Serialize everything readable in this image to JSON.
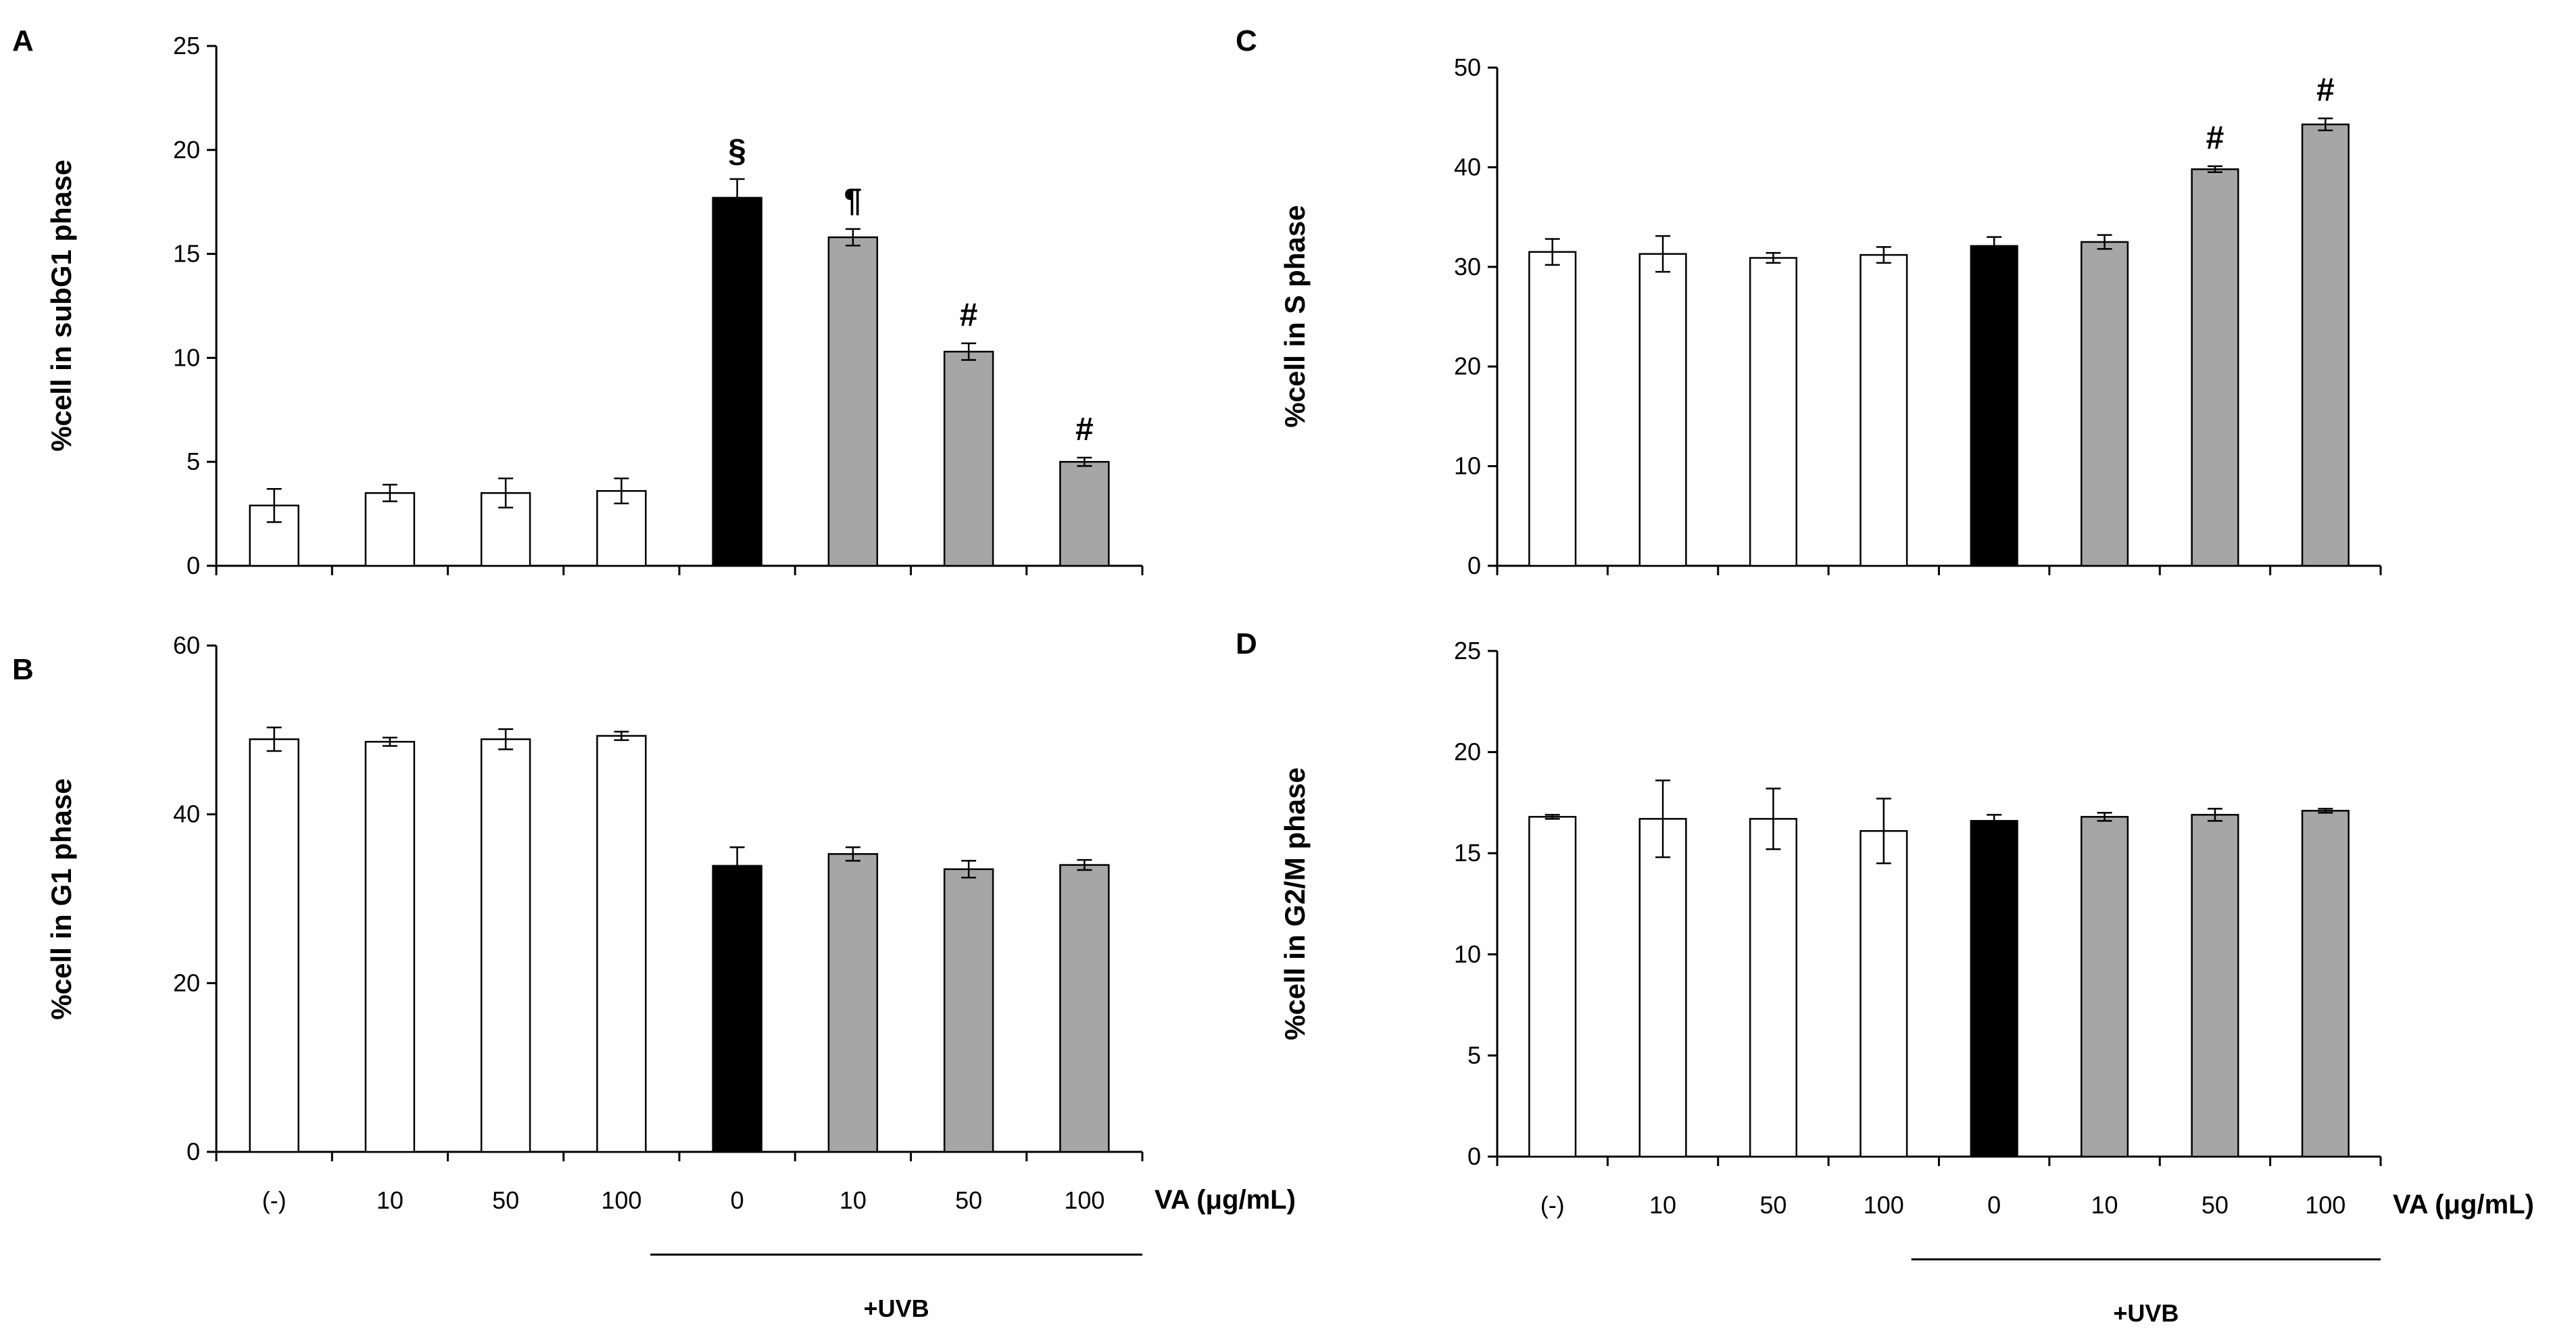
{
  "colors": {
    "control": "#ffffff",
    "uvb": "#000000",
    "uvb_va": "#a6a6a6",
    "stroke": "#000000"
  },
  "x_axis": {
    "categories": [
      "(-)",
      "10",
      "50",
      "100",
      "0",
      "10",
      "50",
      "100"
    ],
    "unit_label": "VA (μg/mL)",
    "group_label": "+UVB"
  },
  "chart_data": [
    {
      "panel": "A",
      "type": "bar",
      "ylabel": "%cell  in subG1 phase",
      "ylim": [
        0,
        25
      ],
      "yticks": [
        0,
        5,
        10,
        15,
        20,
        25
      ],
      "categories": [
        "(-)",
        "10",
        "50",
        "100",
        "0",
        "10",
        "50",
        "100"
      ],
      "values": [
        2.9,
        3.5,
        3.5,
        3.6,
        17.7,
        15.8,
        10.3,
        5.0
      ],
      "errors": [
        0.8,
        0.4,
        0.7,
        0.6,
        0.9,
        0.4,
        0.4,
        0.2
      ],
      "annotations": [
        "",
        "",
        "",
        "",
        "§",
        "¶",
        "#",
        "#"
      ]
    },
    {
      "panel": "B",
      "type": "bar",
      "ylabel": "%cell  in G1 phase",
      "ylim": [
        0,
        60
      ],
      "yticks": [
        0,
        20,
        40,
        60
      ],
      "categories": [
        "(-)",
        "10",
        "50",
        "100",
        "0",
        "10",
        "50",
        "100"
      ],
      "values": [
        48.9,
        48.6,
        48.9,
        49.3,
        33.9,
        35.3,
        33.5,
        34.0
      ],
      "errors": [
        1.4,
        0.5,
        1.2,
        0.5,
        2.2,
        0.8,
        1.0,
        0.6
      ],
      "annotations": [
        "",
        "",
        "",
        "",
        "",
        "",
        "",
        ""
      ]
    },
    {
      "panel": "C",
      "type": "bar",
      "ylabel": "%cell  in S phase",
      "ylim": [
        0,
        50
      ],
      "yticks": [
        0,
        10,
        20,
        30,
        40,
        50
      ],
      "categories": [
        "(-)",
        "10",
        "50",
        "100",
        "0",
        "10",
        "50",
        "100"
      ],
      "values": [
        31.5,
        31.3,
        30.9,
        31.2,
        32.1,
        32.5,
        39.8,
        44.3
      ],
      "errors": [
        1.3,
        1.8,
        0.5,
        0.8,
        0.9,
        0.7,
        0.3,
        0.6
      ],
      "annotations": [
        "",
        "",
        "",
        "",
        "",
        "",
        "#",
        "#"
      ]
    },
    {
      "panel": "D",
      "type": "bar",
      "ylabel": "%cell  in G2/M phase",
      "ylim": [
        0,
        25
      ],
      "yticks": [
        0,
        5,
        10,
        15,
        20,
        25
      ],
      "categories": [
        "(-)",
        "10",
        "50",
        "100",
        "0",
        "10",
        "50",
        "100"
      ],
      "values": [
        16.8,
        16.7,
        16.7,
        16.1,
        16.6,
        16.8,
        16.9,
        17.1
      ],
      "errors": [
        0.1,
        1.9,
        1.5,
        1.6,
        0.3,
        0.2,
        0.3,
        0.1
      ],
      "annotations": [
        "",
        "",
        "",
        "",
        "",
        "",
        "",
        ""
      ]
    }
  ]
}
